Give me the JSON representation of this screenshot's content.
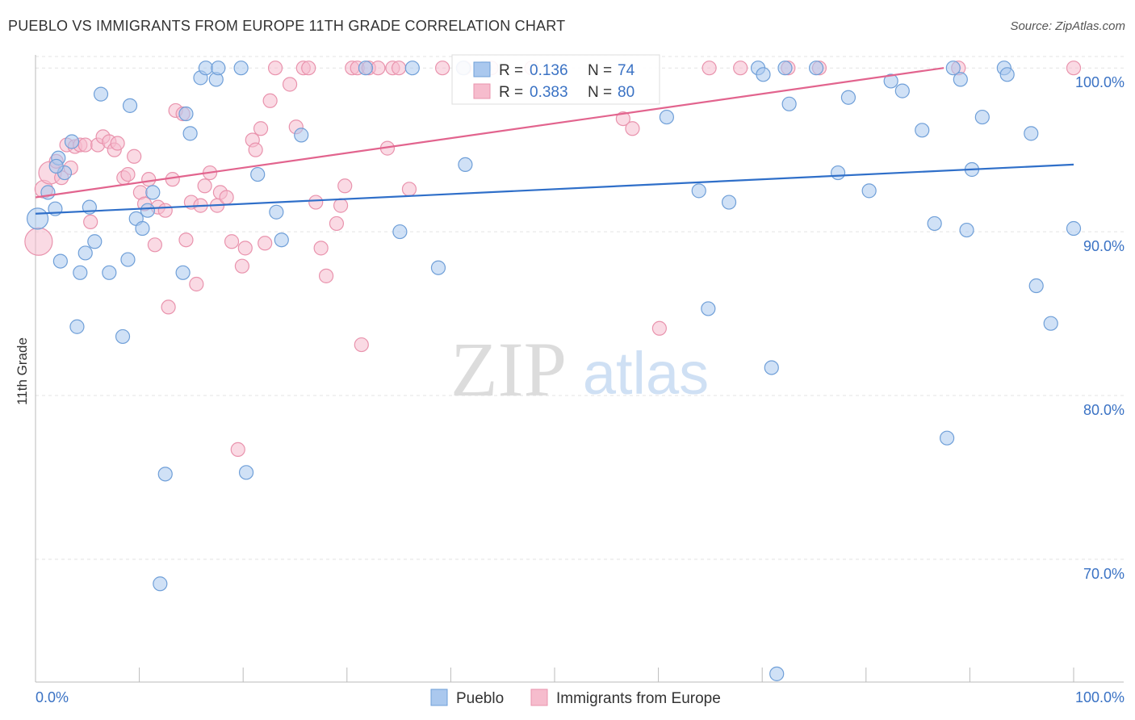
{
  "title": "PUEBLO VS IMMIGRANTS FROM EUROPE 11TH GRADE CORRELATION CHART",
  "source": "Source: ZipAtlas.com",
  "watermark": {
    "zip": "ZIP",
    "atlas": "atlas"
  },
  "colors": {
    "pueblo_fill": "#aac8ee",
    "pueblo_stroke": "#6f9fd8",
    "pueblo_line": "#2f6fc9",
    "europe_fill": "#f6bccd",
    "europe_stroke": "#e993ad",
    "europe_line": "#e2648e",
    "value_text": "#3a72c4",
    "grid": "#e3e3e3"
  },
  "legend_stats": [
    {
      "r_label": "R =",
      "r_value": "0.136",
      "n_label": "N =",
      "n_value": "74",
      "series": "pueblo"
    },
    {
      "r_label": "R =",
      "r_value": "0.383",
      "n_label": "N =",
      "n_value": "80",
      "series": "europe"
    }
  ],
  "chart_data": {
    "type": "scatter",
    "title": "PUEBLO VS IMMIGRANTS FROM EUROPE 11TH GRADE CORRELATION CHART",
    "xlabel": "",
    "ylabel": "11th Grade",
    "xlim": [
      0,
      100
    ],
    "ylim": [
      62.5,
      100.7
    ],
    "x_tick_labels": [
      "0.0%",
      "100.0%"
    ],
    "y_ticks": [
      70,
      80,
      90,
      100
    ],
    "y_tick_labels": [
      "70.0%",
      "80.0%",
      "90.0%",
      "100.0%"
    ],
    "grid": true,
    "legend_position": "bottom-center",
    "series": [
      {
        "name": "Pueblo",
        "trend": {
          "x": [
            0,
            100
          ],
          "y": [
            91.1,
            94.1
          ]
        },
        "points": [
          [
            0.2,
            90.8
          ],
          [
            1.2,
            92.4
          ],
          [
            1.9,
            91.4
          ],
          [
            2.2,
            94.5
          ],
          [
            2.8,
            93.6
          ],
          [
            3.5,
            95.5
          ],
          [
            4.0,
            84.2
          ],
          [
            2.4,
            88.2
          ],
          [
            4.3,
            87.5
          ],
          [
            4.8,
            88.7
          ],
          [
            5.2,
            91.5
          ],
          [
            5.7,
            89.4
          ],
          [
            6.3,
            98.4
          ],
          [
            7.1,
            87.5
          ],
          [
            8.4,
            83.6
          ],
          [
            8.9,
            88.3
          ],
          [
            9.1,
            97.7
          ],
          [
            9.7,
            90.8
          ],
          [
            10.3,
            90.2
          ],
          [
            10.8,
            91.3
          ],
          [
            11.3,
            92.4
          ],
          [
            12.0,
            68.5
          ],
          [
            12.5,
            75.2
          ],
          [
            14.2,
            87.5
          ],
          [
            14.5,
            97.2
          ],
          [
            14.9,
            96.0
          ],
          [
            15.9,
            99.4
          ],
          [
            16.4,
            100.0
          ],
          [
            17.4,
            99.3
          ],
          [
            17.6,
            100.0
          ],
          [
            19.8,
            100.0
          ],
          [
            20.3,
            75.3
          ],
          [
            21.4,
            93.5
          ],
          [
            23.2,
            91.2
          ],
          [
            23.7,
            89.5
          ],
          [
            25.6,
            95.9
          ],
          [
            31.8,
            100.0
          ],
          [
            35.1,
            90.0
          ],
          [
            36.3,
            100.0
          ],
          [
            38.8,
            87.8
          ],
          [
            41.2,
            100.0
          ],
          [
            41.4,
            94.1
          ],
          [
            43.2,
            100.0
          ],
          [
            60.8,
            97.0
          ],
          [
            63.9,
            92.5
          ],
          [
            64.8,
            85.3
          ],
          [
            66.8,
            91.8
          ],
          [
            69.6,
            100.0
          ],
          [
            70.1,
            99.6
          ],
          [
            70.9,
            81.7
          ],
          [
            72.2,
            100.0
          ],
          [
            71.4,
            63.0
          ],
          [
            72.6,
            97.8
          ],
          [
            75.2,
            100.0
          ],
          [
            77.3,
            93.6
          ],
          [
            78.3,
            98.2
          ],
          [
            80.3,
            92.5
          ],
          [
            82.4,
            99.2
          ],
          [
            83.5,
            98.6
          ],
          [
            85.4,
            96.2
          ],
          [
            86.6,
            90.5
          ],
          [
            87.8,
            77.4
          ],
          [
            88.4,
            100.0
          ],
          [
            89.1,
            99.3
          ],
          [
            89.7,
            90.1
          ],
          [
            90.2,
            93.8
          ],
          [
            91.2,
            97.0
          ],
          [
            93.3,
            100.0
          ],
          [
            93.6,
            99.6
          ],
          [
            95.9,
            96.0
          ],
          [
            96.4,
            86.7
          ],
          [
            97.8,
            84.4
          ],
          [
            100.0,
            90.2
          ],
          [
            2.0,
            94.0
          ]
        ]
      },
      {
        "name": "Immigrants from Europe",
        "trend": {
          "x": [
            0,
            87.5
          ],
          "y": [
            92.1,
            100.0
          ]
        },
        "points": [
          [
            0.3,
            89.4
          ],
          [
            0.8,
            92.6
          ],
          [
            1.4,
            93.6
          ],
          [
            2.0,
            94.3
          ],
          [
            2.5,
            93.3
          ],
          [
            3.0,
            95.3
          ],
          [
            3.4,
            93.9
          ],
          [
            3.8,
            95.2
          ],
          [
            4.3,
            95.3
          ],
          [
            4.8,
            95.3
          ],
          [
            5.3,
            90.6
          ],
          [
            6.0,
            95.3
          ],
          [
            6.5,
            95.8
          ],
          [
            7.1,
            95.5
          ],
          [
            7.6,
            95.0
          ],
          [
            7.9,
            95.4
          ],
          [
            8.5,
            93.3
          ],
          [
            8.9,
            93.5
          ],
          [
            9.5,
            94.6
          ],
          [
            10.1,
            92.4
          ],
          [
            10.5,
            91.7
          ],
          [
            10.9,
            93.2
          ],
          [
            11.5,
            89.2
          ],
          [
            11.8,
            91.5
          ],
          [
            12.5,
            91.3
          ],
          [
            12.8,
            85.4
          ],
          [
            13.2,
            93.2
          ],
          [
            13.5,
            97.4
          ],
          [
            14.2,
            97.2
          ],
          [
            14.5,
            89.5
          ],
          [
            15.0,
            91.8
          ],
          [
            15.5,
            86.8
          ],
          [
            15.9,
            91.6
          ],
          [
            16.3,
            92.8
          ],
          [
            16.8,
            93.6
          ],
          [
            17.5,
            91.6
          ],
          [
            17.8,
            92.4
          ],
          [
            18.4,
            92.1
          ],
          [
            18.9,
            89.4
          ],
          [
            19.5,
            76.7
          ],
          [
            19.9,
            87.9
          ],
          [
            20.2,
            89.0
          ],
          [
            20.9,
            95.6
          ],
          [
            21.2,
            95.0
          ],
          [
            21.7,
            96.3
          ],
          [
            22.1,
            89.3
          ],
          [
            22.6,
            98.0
          ],
          [
            23.1,
            100.0
          ],
          [
            24.5,
            99.0
          ],
          [
            25.1,
            96.4
          ],
          [
            25.8,
            100.0
          ],
          [
            26.3,
            100.0
          ],
          [
            27.0,
            91.8
          ],
          [
            27.5,
            89.0
          ],
          [
            28.0,
            87.3
          ],
          [
            29.0,
            90.5
          ],
          [
            29.4,
            91.6
          ],
          [
            29.8,
            92.8
          ],
          [
            30.5,
            100.0
          ],
          [
            31.0,
            100.0
          ],
          [
            31.4,
            83.1
          ],
          [
            32.1,
            100.0
          ],
          [
            33.0,
            100.0
          ],
          [
            33.9,
            95.1
          ],
          [
            34.4,
            100.0
          ],
          [
            35.0,
            100.0
          ],
          [
            36.0,
            92.6
          ],
          [
            39.2,
            100.0
          ],
          [
            41.3,
            100.0
          ],
          [
            43.9,
            100.0
          ],
          [
            47.8,
            100.0
          ],
          [
            56.6,
            96.9
          ],
          [
            57.5,
            96.3
          ],
          [
            60.1,
            84.1
          ],
          [
            64.9,
            100.0
          ],
          [
            67.9,
            100.0
          ],
          [
            72.5,
            100.0
          ],
          [
            75.5,
            100.0
          ],
          [
            88.9,
            100.0
          ],
          [
            100.0,
            100.0
          ]
        ]
      }
    ],
    "bottom_legend": [
      "Pueblo",
      "Immigrants from Europe"
    ]
  }
}
